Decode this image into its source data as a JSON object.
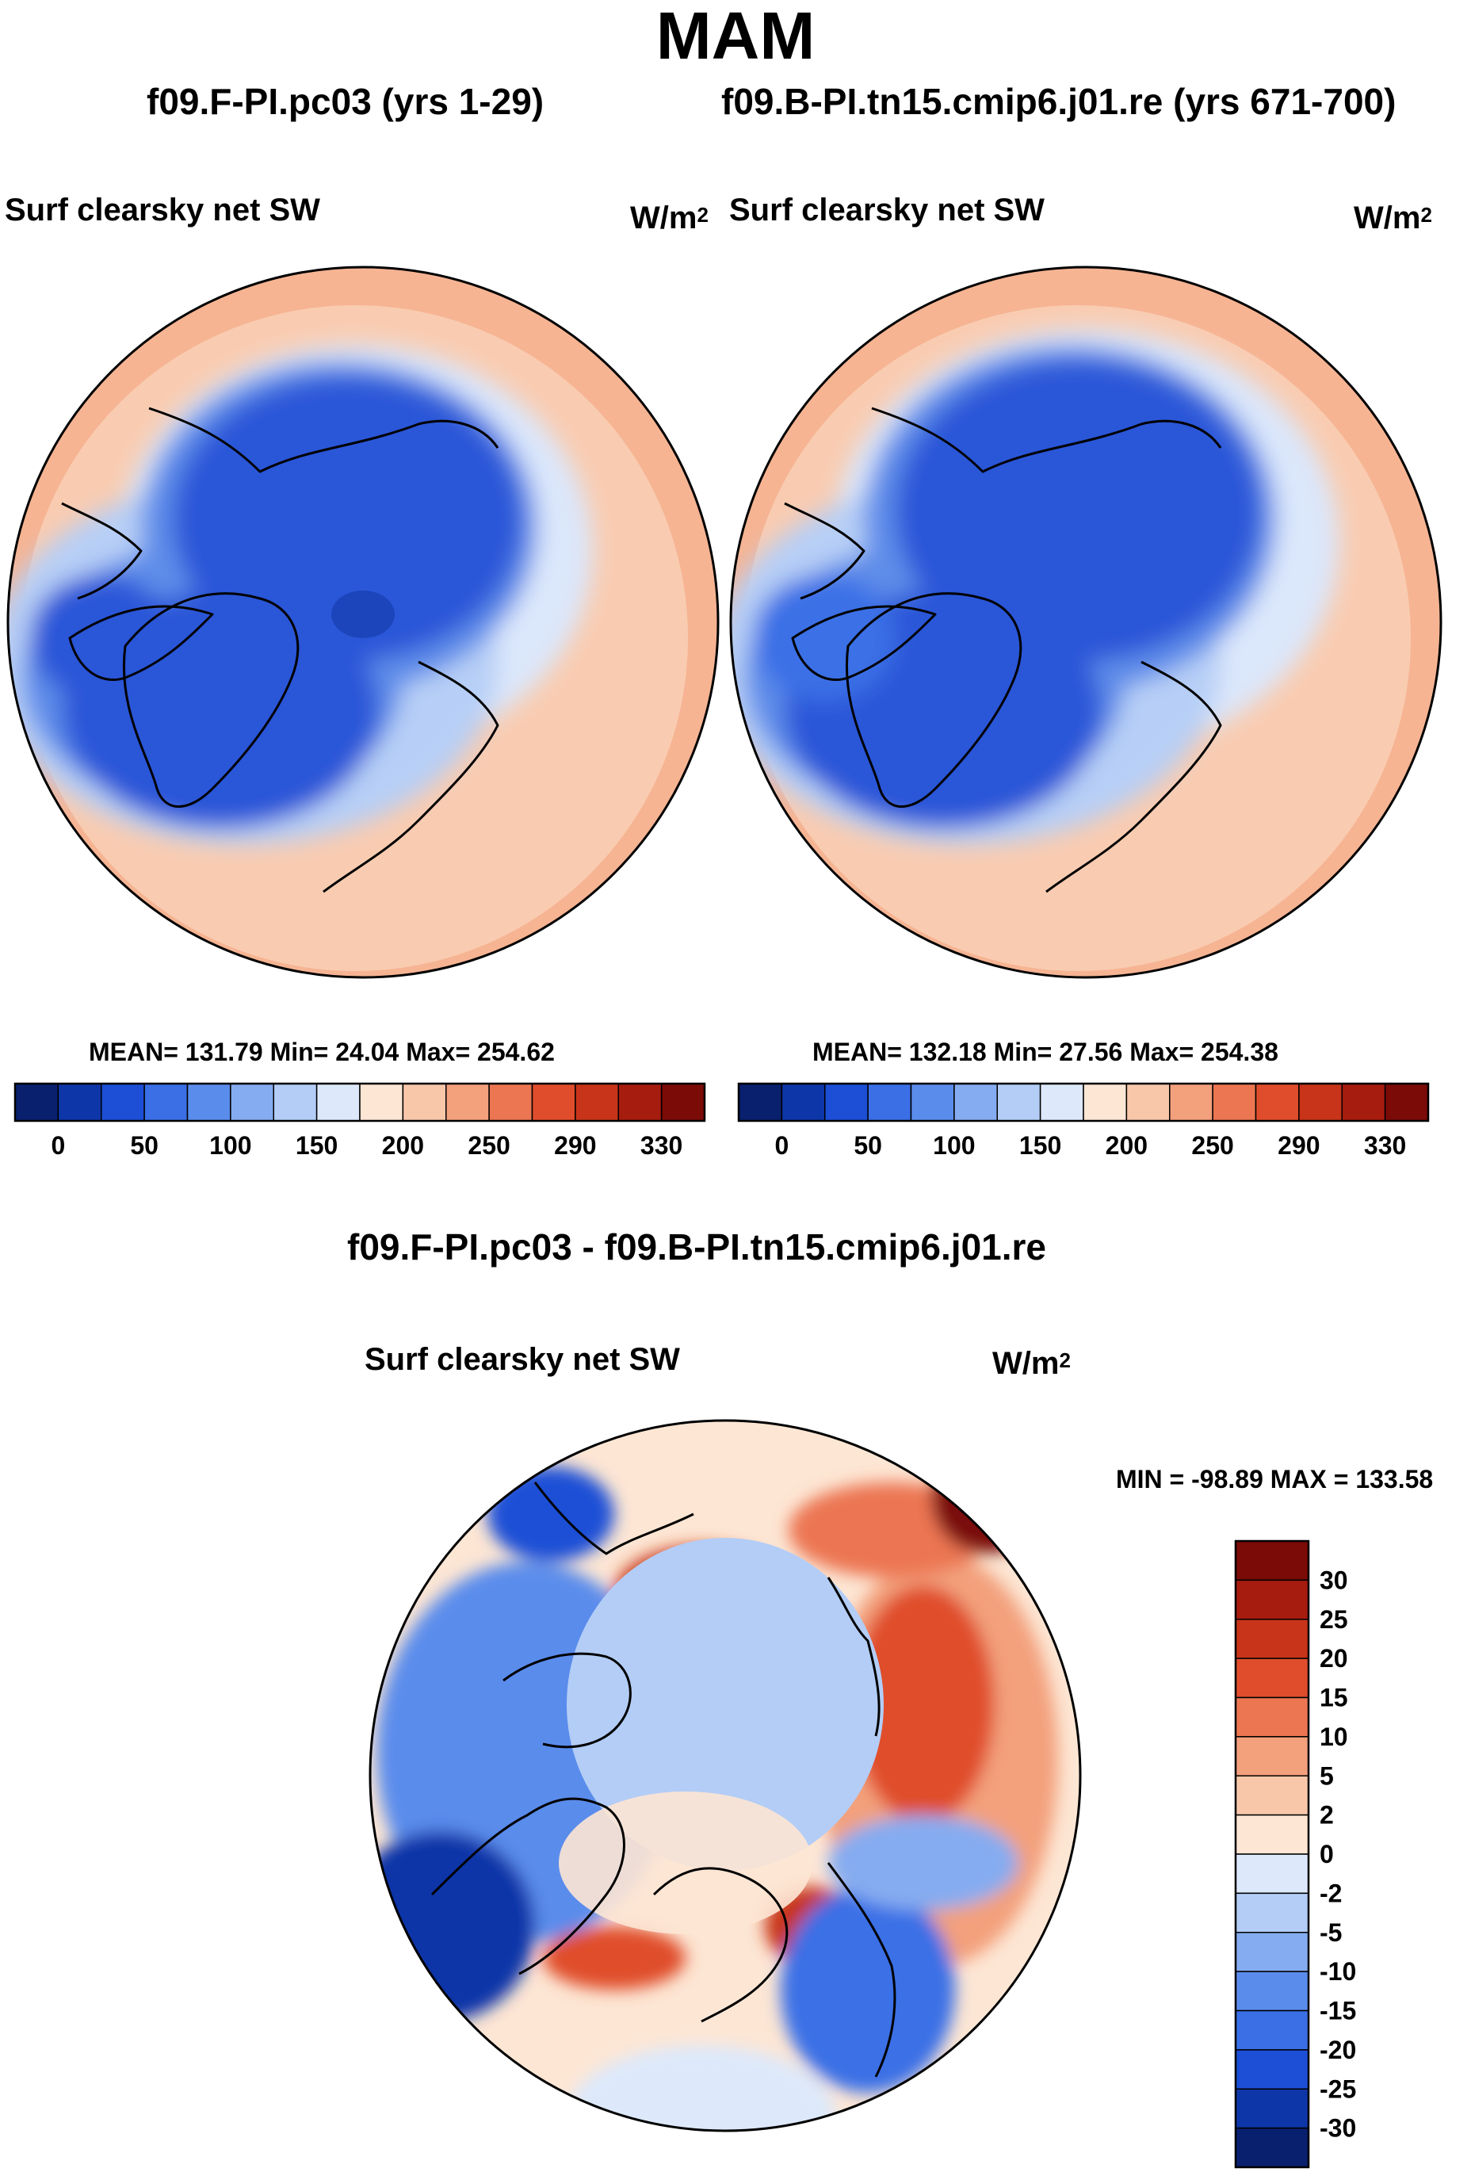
{
  "title": "MAM",
  "panels": {
    "left": {
      "case_title": "f09.F-PI.pc03 (yrs 1-29)",
      "var_title": "Surf clearsky net SW",
      "units_base": "W/m",
      "units_exp": "2",
      "stats": "MEAN= 131.79  Min=  24.04  Max= 254.62"
    },
    "right": {
      "case_title": "f09.B-PI.tn15.cmip6.j01.re (yrs 671-700)",
      "var_title": "Surf clearsky net SW",
      "units_base": "W/m",
      "units_exp": "2",
      "stats": "MEAN= 132.18  Min=  27.56  Max= 254.38"
    },
    "diff": {
      "case_title": "f09.F-PI.pc03 - f09.B-PI.tn15.cmip6.j01.re",
      "var_title": "Surf clearsky net SW",
      "units_base": "W/m",
      "units_exp": "2",
      "stats": "MIN = -98.89 MAX = 133.58"
    }
  },
  "chart_data": [
    {
      "type": "heatmap",
      "title": "Surf clearsky net SW",
      "subtitle": "f09.F-PI.pc03 (yrs 1-29)",
      "projection": "north polar stereographic",
      "units": "W/m2",
      "mean": 131.79,
      "min": 24.04,
      "max": 254.62,
      "colorbar": {
        "orientation": "horizontal",
        "tick_labels": [
          "0",
          "50",
          "100",
          "150",
          "200",
          "250",
          "290",
          "330"
        ],
        "colors": [
          "#08206e",
          "#0d36a8",
          "#1c4fd6",
          "#3a6fe6",
          "#5a8cec",
          "#85acf0",
          "#b3cdf6",
          "#dde9fb",
          "#fde6d4",
          "#f8c7aa",
          "#f3a07c",
          "#ec7652",
          "#e04d2c",
          "#c73419",
          "#a61c0f",
          "#7a0b07"
        ]
      }
    },
    {
      "type": "heatmap",
      "title": "Surf clearsky net SW",
      "subtitle": "f09.B-PI.tn15.cmip6.j01.re (yrs 671-700)",
      "projection": "north polar stereographic",
      "units": "W/m2",
      "mean": 132.18,
      "min": 27.56,
      "max": 254.38,
      "colorbar": {
        "orientation": "horizontal",
        "tick_labels": [
          "0",
          "50",
          "100",
          "150",
          "200",
          "250",
          "290",
          "330"
        ],
        "colors": [
          "#08206e",
          "#0d36a8",
          "#1c4fd6",
          "#3a6fe6",
          "#5a8cec",
          "#85acf0",
          "#b3cdf6",
          "#dde9fb",
          "#fde6d4",
          "#f8c7aa",
          "#f3a07c",
          "#ec7652",
          "#e04d2c",
          "#c73419",
          "#a61c0f",
          "#7a0b07"
        ]
      }
    },
    {
      "type": "heatmap",
      "title": "Surf clearsky net SW",
      "subtitle": "f09.F-PI.pc03 - f09.B-PI.tn15.cmip6.j01.re",
      "projection": "north polar stereographic",
      "units": "W/m2",
      "min": -98.89,
      "max": 133.58,
      "colorbar": {
        "orientation": "vertical",
        "tick_labels": [
          "30",
          "25",
          "20",
          "15",
          "10",
          "5",
          "2",
          "0",
          "-2",
          "-5",
          "-10",
          "-15",
          "-20",
          "-25",
          "-30"
        ],
        "colors": [
          "#7a0b07",
          "#a61c0f",
          "#c73419",
          "#e04d2c",
          "#ec7652",
          "#f3a07c",
          "#f8c7aa",
          "#fde6d4",
          "#dde9fb",
          "#b3cdf6",
          "#85acf0",
          "#5a8cec",
          "#3a6fe6",
          "#1c4fd6",
          "#0d36a8",
          "#08206e"
        ]
      }
    }
  ]
}
